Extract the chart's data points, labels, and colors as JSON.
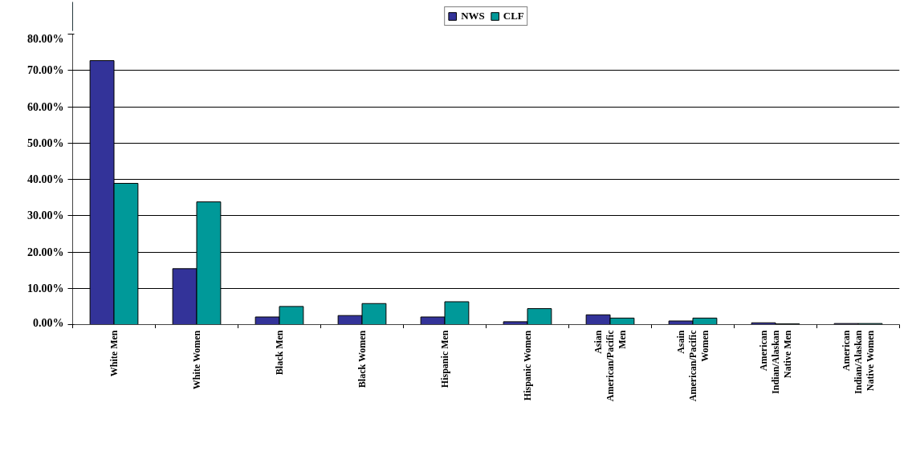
{
  "chart_data": {
    "type": "bar",
    "categories": [
      "White Men",
      "White Women",
      "Black Men",
      "Black Women",
      "Hispanic Men",
      "Hispanic Women",
      "Asian American/Pacific Men",
      "Asain American/Pacific Women",
      "American Indian/Alaskan Native Men",
      "American Indian/Alaskan Native Women"
    ],
    "series": [
      {
        "name": "NWS",
        "color": "#333399",
        "values": [
          72.7,
          15.4,
          2.1,
          2.5,
          2.1,
          0.8,
          2.7,
          1.0,
          0.5,
          0.3
        ]
      },
      {
        "name": "CLF",
        "color": "#009999",
        "values": [
          38.9,
          33.8,
          5.0,
          5.8,
          6.3,
          4.4,
          1.8,
          1.8,
          0.2,
          0.3
        ]
      }
    ],
    "ylim": [
      0,
      80
    ],
    "yticks": [
      {
        "value": 0,
        "label": "0.00%"
      },
      {
        "value": 10,
        "label": "10.00%"
      },
      {
        "value": 20,
        "label": "20.00%"
      },
      {
        "value": 30,
        "label": "30.00%"
      },
      {
        "value": 40,
        "label": "40.00%"
      },
      {
        "value": 50,
        "label": "50.00%"
      },
      {
        "value": 60,
        "label": "60.00%"
      },
      {
        "value": 70,
        "label": "70.00%"
      },
      {
        "value": 80,
        "label": "80.00%"
      }
    ],
    "grid": "y",
    "legend": "top"
  }
}
